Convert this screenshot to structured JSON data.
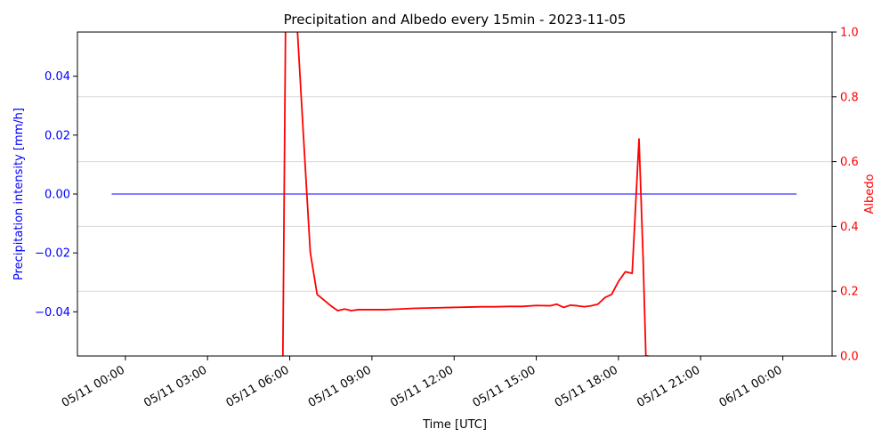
{
  "chart_data": {
    "type": "line",
    "title": "Precipitation and Albedo every 15min - 2023-11-05",
    "xlabel": "Time [UTC]",
    "x_ticks": [
      "05/11 00:00",
      "05/11 03:00",
      "05/11 06:00",
      "05/11 09:00",
      "05/11 12:00",
      "05/11 15:00",
      "05/11 18:00",
      "05/11 21:00",
      "06/11 00:00"
    ],
    "x_range_hours": [
      -1.75,
      25.8
    ],
    "y_left": {
      "label": "Precipitation intensity [mm/h]",
      "color": "#0000ff",
      "range": [
        -0.055,
        0.055
      ],
      "ticks": [
        "−0.04",
        "−0.02",
        "0.00",
        "0.02",
        "0.04"
      ],
      "tick_values": [
        -0.04,
        -0.02,
        0.0,
        0.02,
        0.04
      ]
    },
    "y_right": {
      "label": "Albedo",
      "color": "#ff0000",
      "range": [
        0,
        1
      ],
      "ticks": [
        "0.0",
        "0.2",
        "0.4",
        "0.6",
        "0.8",
        "1.0"
      ],
      "tick_values": [
        0,
        0.2,
        0.4,
        0.6,
        0.8,
        1.0
      ],
      "grid": true
    },
    "series": [
      {
        "axis": "left",
        "color": "#0000ff",
        "x_hours": [
          -0.5,
          24.5
        ],
        "y": [
          0.0,
          0.0
        ]
      },
      {
        "axis": "right",
        "color": "#ff0000",
        "x_hours": [
          5.75,
          5.85,
          6.25,
          6.5,
          6.75,
          7.0,
          7.5,
          7.75,
          8.0,
          8.25,
          8.5,
          9.0,
          9.5,
          10.0,
          10.5,
          11.0,
          11.5,
          12.0,
          12.5,
          13.0,
          13.5,
          14.0,
          14.5,
          15.0,
          15.5,
          15.75,
          16.0,
          16.25,
          16.5,
          16.75,
          17.0,
          17.25,
          17.5,
          17.75,
          18.0,
          18.25,
          18.5,
          18.75,
          18.9,
          19.0,
          19.1
        ],
        "y": [
          0.0,
          1.05,
          1.05,
          0.68,
          0.32,
          0.19,
          0.155,
          0.14,
          0.145,
          0.14,
          0.143,
          0.143,
          0.143,
          0.145,
          0.147,
          0.148,
          0.149,
          0.15,
          0.151,
          0.152,
          0.152,
          0.153,
          0.153,
          0.156,
          0.155,
          0.16,
          0.15,
          0.157,
          0.155,
          0.152,
          0.155,
          0.16,
          0.18,
          0.19,
          0.23,
          0.26,
          0.255,
          0.67,
          0.3,
          0.0,
          0.0
        ]
      }
    ]
  }
}
